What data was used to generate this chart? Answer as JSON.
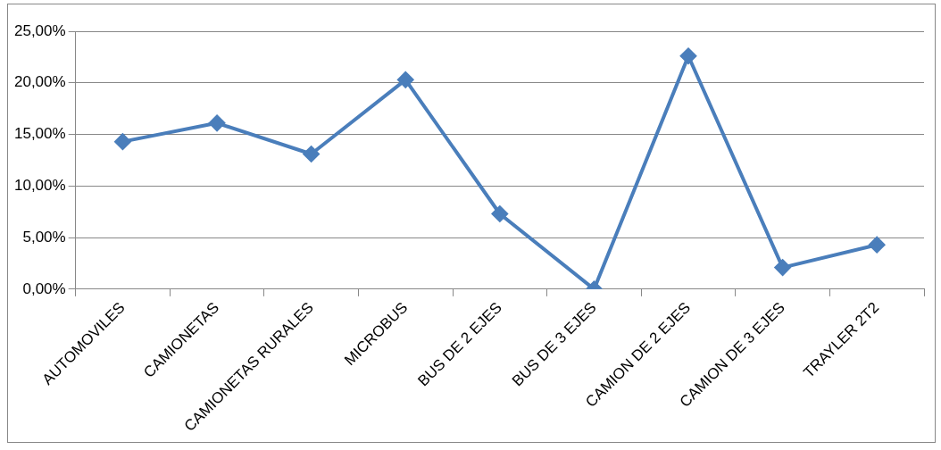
{
  "chart_data": {
    "type": "line",
    "categories": [
      "AUTOMOVILES",
      "CAMIONETAS",
      "CAMIONETAS RURALES",
      "MICROBUS",
      "BUS DE 2 EJES",
      "BUS DE 3 EJES",
      "CAMION DE 2 EJES",
      "CAMION DE 3 EJES",
      "TRAYLER 2T2"
    ],
    "series": [
      {
        "color": "#4a7ebb",
        "values": [
          14.3,
          16.1,
          13.1,
          20.3,
          7.3,
          0,
          22.6,
          2.1,
          4.3
        ]
      }
    ],
    "ylim": [
      0,
      25
    ],
    "yticks": [
      {
        "value": 0,
        "label": "0,00%"
      },
      {
        "value": 5,
        "label": "5,00%"
      },
      {
        "value": 10,
        "label": "10,00%"
      },
      {
        "value": 15,
        "label": "15,00%"
      },
      {
        "value": 20,
        "label": "20,00%"
      },
      {
        "value": 25,
        "label": "25,00%"
      }
    ],
    "grid": "y",
    "legend": false,
    "marker": "diamond",
    "line_style": "solid"
  }
}
